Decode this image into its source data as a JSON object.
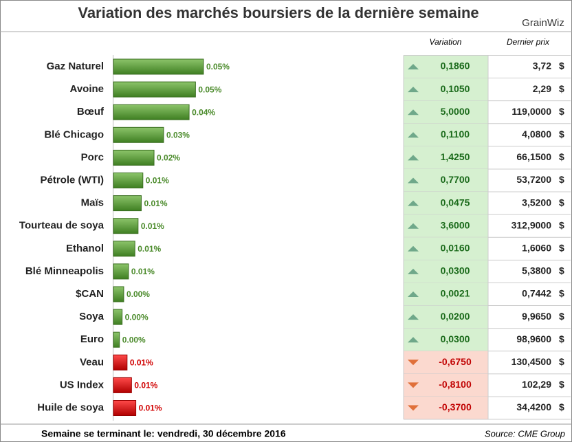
{
  "chart_data": {
    "type": "bar",
    "title": "Variation des marchés boursiers de la dernière semaine",
    "logo": "GrainWiz",
    "categories": [
      "Gaz Naturel",
      "Avoine",
      "Bœuf",
      "Blé Chicago",
      "Porc",
      "Pétrole (WTI)",
      "Maïs",
      "Tourteau de soya",
      "Ethanol",
      "Blé Minneapolis",
      "$CAN",
      "Soya",
      "Euro",
      "Veau",
      "US Index",
      "Huile de soya"
    ],
    "values": [
      0.053,
      0.048,
      0.044,
      0.028,
      0.022,
      0.015,
      0.014,
      0.012,
      0.01,
      0.006,
      0.003,
      0.002,
      0.0003,
      -0.0051,
      -0.0079,
      -0.0106
    ],
    "value_labels": [
      "0.05%",
      "0.05%",
      "0.04%",
      "0.03%",
      "0.02%",
      "0.01%",
      "0.01%",
      "0.01%",
      "0.01%",
      "0.01%",
      "0.00%",
      "0.00%",
      "0.00%",
      "0.01%",
      "0.01%",
      "0.01%"
    ],
    "up_color": "#5c9e3c",
    "down_color": "#e00000",
    "table": {
      "headers": [
        "Variation",
        "Dernier prix"
      ],
      "variation": [
        "0,1860",
        "0,1050",
        "5,0000",
        "0,1100",
        "1,4250",
        "0,7700",
        "0,0475",
        "3,6000",
        "0,0160",
        "0,0300",
        "0,0021",
        "0,0200",
        "0,0300",
        "-0,6750",
        "-0,8100",
        "-0,3700"
      ],
      "price": [
        "3,72",
        "2,29",
        "119,0000",
        "4,0800",
        "66,1500",
        "53,7200",
        "3,5200",
        "312,9000",
        "1,6060",
        "5,3800",
        "0,7442",
        "9,9650",
        "98,9600",
        "130,4500",
        "102,29",
        "34,4200"
      ],
      "currency": "$"
    },
    "footer": "Semaine se terminant le: vendredi, 30 décembre 2016",
    "source": "Source: CME Group"
  }
}
